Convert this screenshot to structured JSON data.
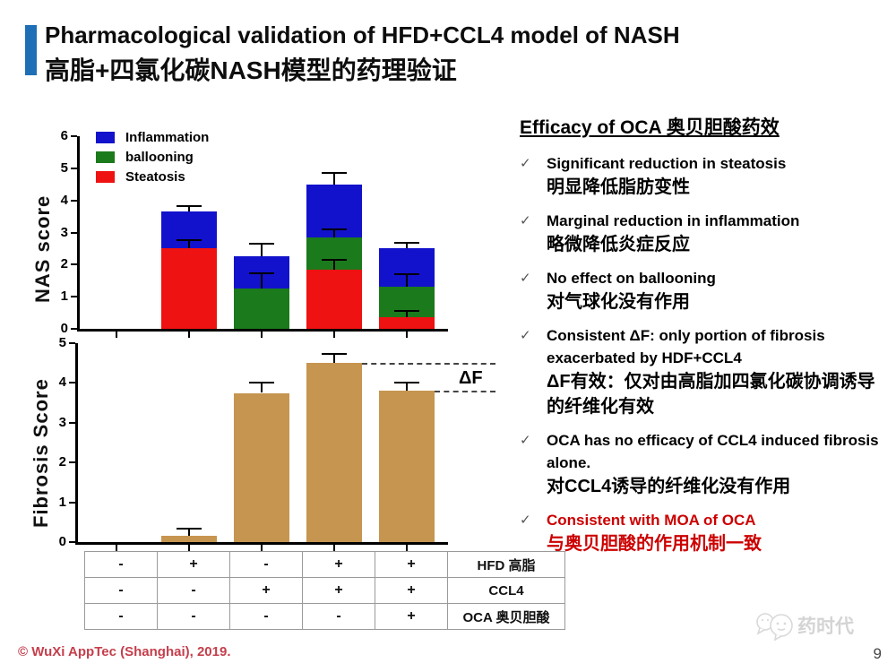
{
  "slide": {
    "title_en": "Pharmacological validation of HFD+CCL4 model of NASH",
    "title_zh": "高脂+四氯化碳NASH模型的药理验证",
    "footer": "© WuXi AppTec (Shanghai), 2019.",
    "page_number": "9",
    "watermark_text": "药时代"
  },
  "colors": {
    "accent_bar": "#1e6fb5",
    "inflammation": "#1212cc",
    "ballooning": "#1b7a1b",
    "steatosis": "#ee1212",
    "fibrosis_bar": "#c6954f",
    "highlight_red": "#cc0000",
    "footer_red": "#c43f4c"
  },
  "chart_data": [
    {
      "id": "nas",
      "type": "stacked_bar",
      "ylabel": "NAS score",
      "ylim": [
        0,
        6
      ],
      "yticks": [
        0,
        1,
        2,
        3,
        4,
        5,
        6
      ],
      "categories": [
        "-/-/-",
        "+/-/-",
        "-/+/-",
        "+/+/-",
        "+/+/+"
      ],
      "series": [
        {
          "name": "Steatosis",
          "color": "#ee1212",
          "values": [
            0,
            2.5,
            0,
            1.85,
            0.35
          ]
        },
        {
          "name": "ballooning",
          "color": "#1b7a1b",
          "values": [
            0,
            0,
            1.25,
            1.0,
            0.95
          ]
        },
        {
          "name": "Inflammation",
          "color": "#1212cc",
          "values": [
            0,
            1.15,
            1.0,
            1.65,
            1.2
          ]
        }
      ],
      "totals": [
        0,
        3.65,
        2.25,
        4.5,
        2.5
      ],
      "error_bars": [
        {
          "bar": 1,
          "from": 2.5,
          "to": 2.75
        },
        {
          "bar": 1,
          "from": 3.65,
          "to": 3.82
        },
        {
          "bar": 2,
          "from": 1.25,
          "to": 1.72
        },
        {
          "bar": 2,
          "from": 2.25,
          "to": 2.65
        },
        {
          "bar": 3,
          "from": 1.85,
          "to": 2.15
        },
        {
          "bar": 3,
          "from": 2.85,
          "to": 3.1
        },
        {
          "bar": 3,
          "from": 4.5,
          "to": 4.85
        },
        {
          "bar": 4,
          "from": 0.35,
          "to": 0.55
        },
        {
          "bar": 4,
          "from": 1.3,
          "to": 1.7
        },
        {
          "bar": 4,
          "from": 2.5,
          "to": 2.67
        }
      ],
      "legend": [
        "Inflammation",
        "ballooning",
        "Steatosis"
      ],
      "legend_position": "top-left",
      "grid": false
    },
    {
      "id": "fibrosis",
      "type": "bar",
      "ylabel": "Fibrosis Score",
      "ylim": [
        0,
        5
      ],
      "yticks": [
        0,
        1,
        2,
        3,
        4,
        5
      ],
      "categories": [
        "-/-/-",
        "+/-/-",
        "-/+/-",
        "+/+/-",
        "+/+/+"
      ],
      "values": [
        0,
        0.15,
        3.75,
        4.5,
        3.8
      ],
      "error_tops": [
        null,
        0.33,
        4.0,
        4.72,
        4.0
      ],
      "bar_color": "#c6954f",
      "annotation_label": "ΔF",
      "dashed_levels": [
        4.5,
        3.8
      ],
      "grid": false
    }
  ],
  "table": {
    "rows": [
      {
        "label": "HFD 高脂",
        "values": [
          "-",
          "+",
          "-",
          "+",
          "+"
        ]
      },
      {
        "label": "CCL4",
        "values": [
          "-",
          "-",
          "+",
          "+",
          "+"
        ]
      },
      {
        "label": "OCA 奥贝胆酸",
        "values": [
          "-",
          "-",
          "-",
          "-",
          "+"
        ]
      }
    ]
  },
  "right_panel": {
    "heading": "Efficacy of OCA 奥贝胆酸药效",
    "check_glyph": "✓",
    "bullets": [
      {
        "en": "Significant reduction in steatosis",
        "zh": "明显降低脂肪变性",
        "red": false
      },
      {
        "en": "Marginal reduction in inflammation",
        "zh": "略微降低炎症反应",
        "red": false
      },
      {
        "en": "No effect on ballooning",
        "zh": "对气球化没有作用",
        "red": false
      },
      {
        "en": "Consistent ΔF: only portion of fibrosis exacerbated by HDF+CCL4",
        "zh": "ΔF有效：仅对由高脂加四氯化碳协调诱导的纤维化有效",
        "red": false
      },
      {
        "en": "OCA has no efficacy of CCL4 induced fibrosis alone.",
        "zh": "对CCL4诱导的纤维化没有作用",
        "red": false
      },
      {
        "en": "Consistent with MOA of OCA",
        "zh": "与奥贝胆酸的作用机制一致",
        "red": true
      }
    ]
  }
}
